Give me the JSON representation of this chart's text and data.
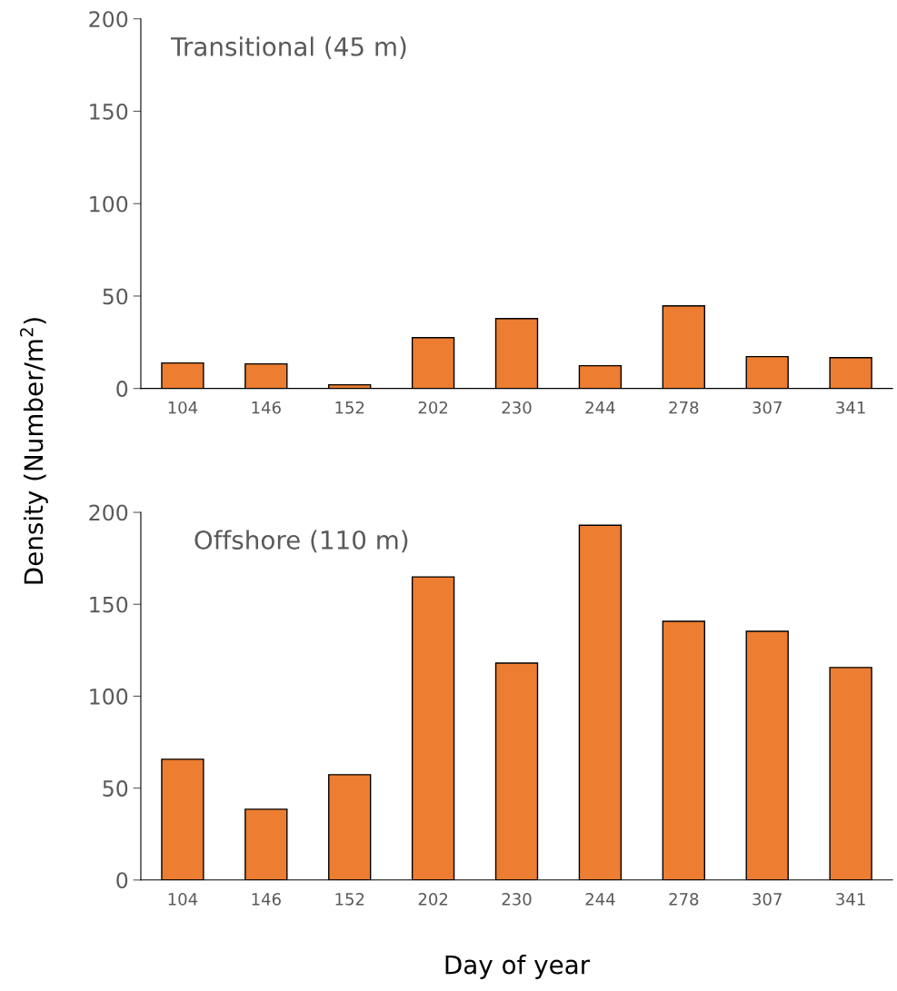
{
  "chart_data": [
    {
      "type": "bar",
      "title": "Transitional (45 m)",
      "ylabel": "Density (Number/m$^{2}$)",
      "categories": [
        "104",
        "146",
        "152",
        "202",
        "230",
        "244",
        "278",
        "307",
        "341"
      ],
      "values": [
        13.8,
        13.3,
        2,
        27.5,
        37.8,
        12.3,
        44.7,
        17.2,
        16.7
      ],
      "color": "#ed7d31",
      "ylim": [
        0,
        200
      ],
      "yticks": [
        0,
        50,
        100,
        150,
        200
      ],
      "grid": false
    },
    {
      "type": "bar",
      "title": "Offshore (110 m)",
      "xlabel": "Day of year",
      "categories": [
        "104",
        "146",
        "152",
        "202",
        "230",
        "244",
        "278",
        "307",
        "341"
      ],
      "values": [
        65.7,
        38.5,
        57.3,
        164.9,
        118,
        193,
        140.7,
        135.3,
        115.6
      ],
      "color": "#ed7d31",
      "ylim": [
        0,
        200
      ],
      "yticks": [
        0,
        50,
        100,
        150,
        200
      ],
      "grid": false
    }
  ]
}
